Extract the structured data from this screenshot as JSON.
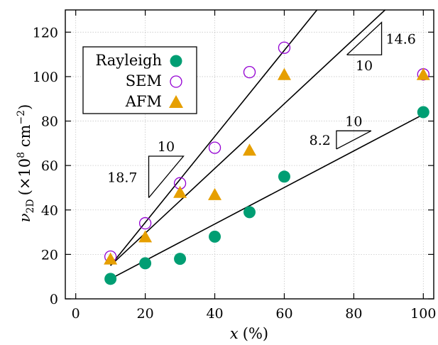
{
  "chart_data": {
    "type": "scatter",
    "xlabel_var": "x",
    "xlabel_unit": "(%)",
    "ylabel_var": "ν",
    "ylabel_sub": "2D",
    "ylabel_unit_pre": "(×10",
    "ylabel_unit_exp": "8",
    "ylabel_unit_mid": " cm",
    "ylabel_unit_exp2": "−2",
    "ylabel_unit_post": ")",
    "xlim": [
      -3,
      103
    ],
    "ylim": [
      0,
      130
    ],
    "xticks": [
      "0",
      "20",
      "40",
      "60",
      "80",
      "100"
    ],
    "xtick_values": [
      0,
      20,
      40,
      60,
      80,
      100
    ],
    "yticks": [
      "0",
      "20",
      "40",
      "60",
      "80",
      "100",
      "120"
    ],
    "ytick_values": [
      0,
      20,
      40,
      60,
      80,
      100,
      120
    ],
    "grid": true,
    "legend_position": "top-left",
    "series": [
      {
        "name": "Rayleigh",
        "marker": "filled-circle",
        "color": "#009e73",
        "points": [
          [
            10,
            9
          ],
          [
            20,
            16
          ],
          [
            30,
            18
          ],
          [
            40,
            28
          ],
          [
            50,
            39
          ],
          [
            60,
            55
          ],
          [
            100,
            84
          ]
        ]
      },
      {
        "name": "SEM",
        "marker": "open-circle",
        "color": "#9400d3",
        "points": [
          [
            10,
            19
          ],
          [
            20,
            34
          ],
          [
            30,
            52
          ],
          [
            40,
            68
          ],
          [
            50,
            102
          ],
          [
            60,
            113
          ],
          [
            100,
            101
          ]
        ]
      },
      {
        "name": "AFM",
        "marker": "filled-triangle",
        "color": "#e69f00",
        "points": [
          [
            10,
            18
          ],
          [
            20,
            28
          ],
          [
            30,
            48
          ],
          [
            40,
            47
          ],
          [
            50,
            67
          ],
          [
            60,
            101
          ],
          [
            100,
            101
          ]
        ]
      }
    ],
    "fit_lines": [
      {
        "x": [
          10,
          100
        ],
        "y": [
          9,
          83
        ]
      },
      {
        "x": [
          10,
          69.4
        ],
        "y": [
          15,
          130
        ]
      },
      {
        "x": [
          10,
          89
        ],
        "y": [
          15,
          130
        ]
      }
    ],
    "slope_annotations": [
      {
        "run_label": "10",
        "rise_label": "18.7",
        "corner": [
          21,
          45.5
        ],
        "run": 10,
        "rise": 18.7
      },
      {
        "run_label": "10",
        "rise_label": "14.6",
        "corner": [
          88,
          109.8
        ],
        "run": 10,
        "rise": 14.6
      },
      {
        "run_label": "10",
        "rise_label": "8.2",
        "corner": [
          75,
          67.4
        ],
        "run": 10,
        "rise": 8.2
      }
    ]
  }
}
